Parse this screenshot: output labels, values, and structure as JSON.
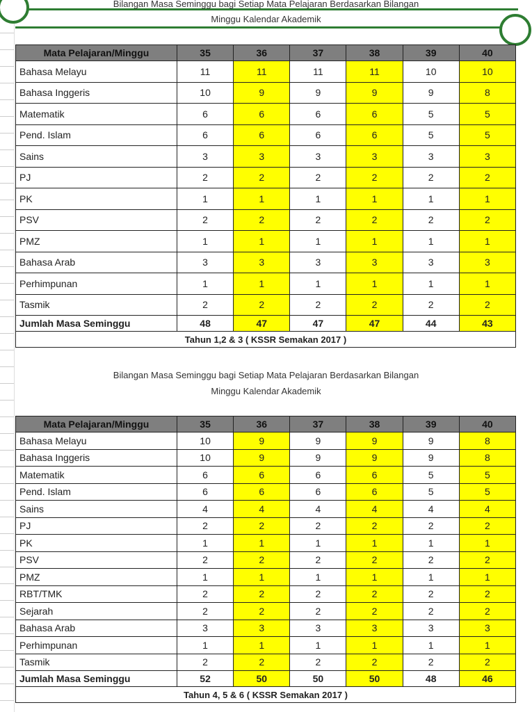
{
  "colors": {
    "highlight": "#ffff00",
    "header": "#7f7f7f",
    "accent": "#2e7d32"
  },
  "title_line1": "Bilangan Masa Seminggu bagi Setiap Mata Pelajaran Berdasarkan Bilangan",
  "title_line2": "Minggu Kalendar Akademik",
  "header_label": "Mata Pelajaran/Minggu",
  "weeks": [
    "35",
    "36",
    "37",
    "38",
    "39",
    "40"
  ],
  "tables": [
    {
      "rows": [
        [
          "Bahasa Melayu",
          "11",
          "11",
          "11",
          "11",
          "10",
          "10"
        ],
        [
          "Bahasa Inggeris",
          "10",
          "9",
          "9",
          "9",
          "9",
          "8"
        ],
        [
          "Matematik",
          "6",
          "6",
          "6",
          "6",
          "5",
          "5"
        ],
        [
          "Pend. Islam",
          "6",
          "6",
          "6",
          "6",
          "5",
          "5"
        ],
        [
          "Sains",
          "3",
          "3",
          "3",
          "3",
          "3",
          "3"
        ],
        [
          "PJ",
          "2",
          "2",
          "2",
          "2",
          "2",
          "2"
        ],
        [
          "PK",
          "1",
          "1",
          "1",
          "1",
          "1",
          "1"
        ],
        [
          "PSV",
          "2",
          "2",
          "2",
          "2",
          "2",
          "2"
        ],
        [
          "PMZ",
          "1",
          "1",
          "1",
          "1",
          "1",
          "1"
        ],
        [
          "Bahasa Arab",
          "3",
          "3",
          "3",
          "3",
          "3",
          "3"
        ],
        [
          "Perhimpunan",
          "1",
          "1",
          "1",
          "1",
          "1",
          "1"
        ],
        [
          "Tasmik",
          "2",
          "2",
          "2",
          "2",
          "2",
          "2"
        ]
      ],
      "total": [
        "Jumlah Masa Seminggu",
        "48",
        "47",
        "47",
        "47",
        "44",
        "43"
      ],
      "caption": "Tahun 1,2 & 3 ( KSSR Semakan 2017 )"
    },
    {
      "rows": [
        [
          "Bahasa Melayu",
          "10",
          "9",
          "9",
          "9",
          "9",
          "8"
        ],
        [
          "Bahasa Inggeris",
          "10",
          "9",
          "9",
          "9",
          "9",
          "8"
        ],
        [
          "Matematik",
          "6",
          "6",
          "6",
          "6",
          "5",
          "5"
        ],
        [
          "Pend. Islam",
          "6",
          "6",
          "6",
          "6",
          "5",
          "5"
        ],
        [
          "Sains",
          "4",
          "4",
          "4",
          "4",
          "4",
          "4"
        ],
        [
          "PJ",
          "2",
          "2",
          "2",
          "2",
          "2",
          "2"
        ],
        [
          "PK",
          "1",
          "1",
          "1",
          "1",
          "1",
          "1"
        ],
        [
          "PSV",
          "2",
          "2",
          "2",
          "2",
          "2",
          "2"
        ],
        [
          "PMZ",
          "1",
          "1",
          "1",
          "1",
          "1",
          "1"
        ],
        [
          "RBT/TMK",
          "2",
          "2",
          "2",
          "2",
          "2",
          "2"
        ],
        [
          "Sejarah",
          "2",
          "2",
          "2",
          "2",
          "2",
          "2"
        ],
        [
          "Bahasa Arab",
          "3",
          "3",
          "3",
          "3",
          "3",
          "3"
        ],
        [
          "Perhimpunan",
          "1",
          "1",
          "1",
          "1",
          "1",
          "1"
        ],
        [
          "Tasmik",
          "2",
          "2",
          "2",
          "2",
          "2",
          "2"
        ]
      ],
      "total": [
        "Jumlah Masa Seminggu",
        "52",
        "50",
        "50",
        "50",
        "48",
        "46"
      ],
      "caption": "Tahun 4, 5 & 6 ( KSSR Semakan 2017 )"
    }
  ]
}
